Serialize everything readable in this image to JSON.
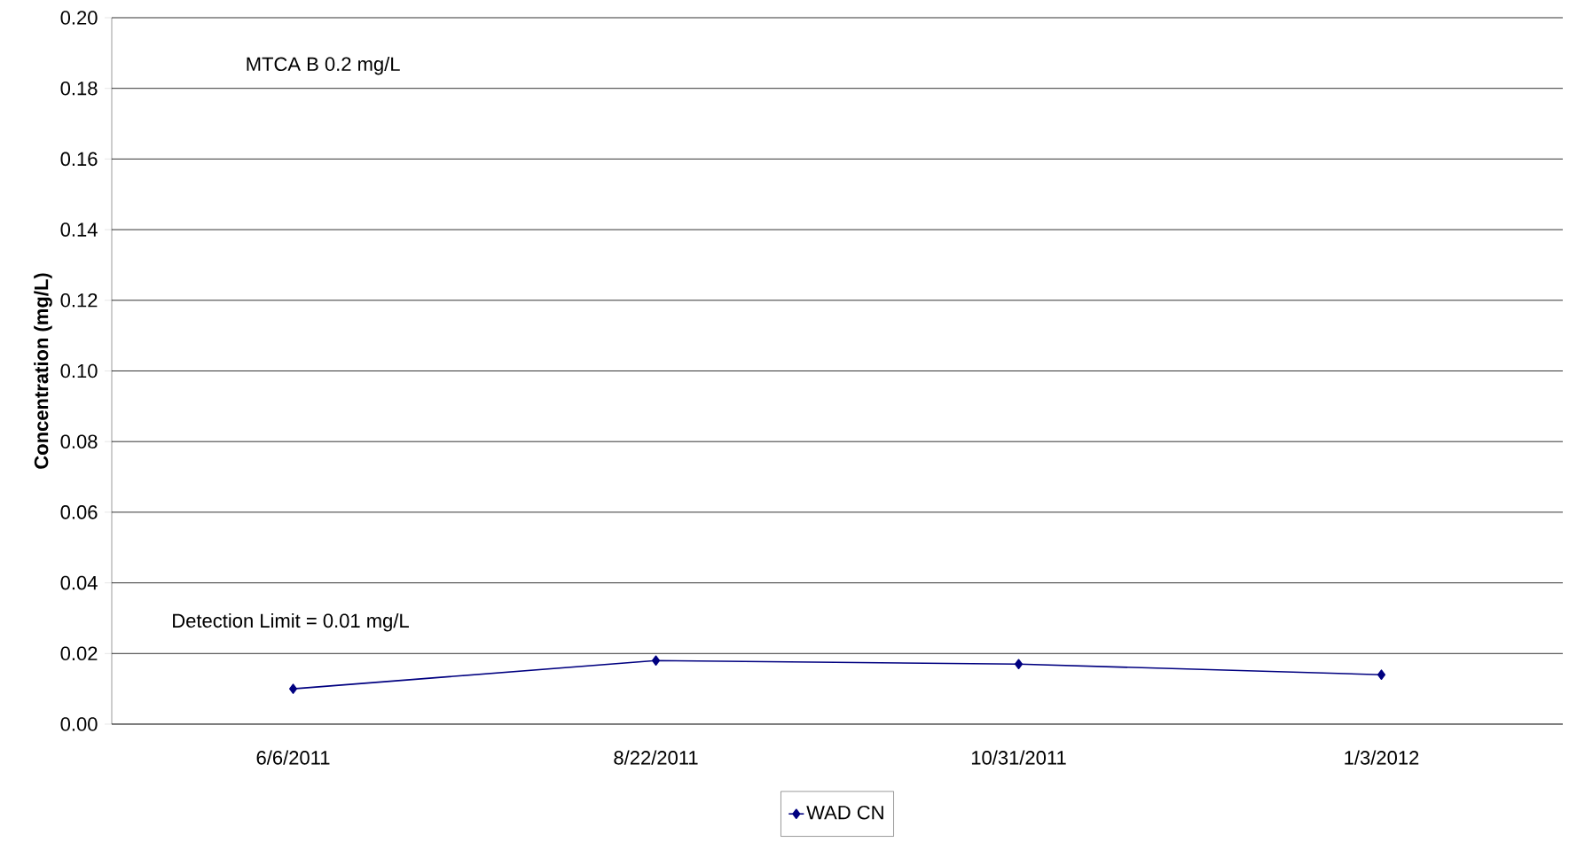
{
  "chart_data": {
    "type": "line",
    "ylabel": "Concentration (mg/L)",
    "categories": [
      "6/6/2011",
      "8/22/2011",
      "10/31/2011",
      "1/3/2012"
    ],
    "series": [
      {
        "name": "WAD CN",
        "color": "#000080",
        "values": [
          0.01,
          0.018,
          0.017,
          0.014
        ]
      }
    ],
    "ylim": [
      0,
      0.2
    ],
    "yticks": [
      {
        "value": 0,
        "label": "0.00"
      },
      {
        "value": 0.02,
        "label": "0.02"
      },
      {
        "value": 0.04,
        "label": "0.04"
      },
      {
        "value": 0.06,
        "label": "0.06"
      },
      {
        "value": 0.08,
        "label": "0.08"
      },
      {
        "value": 0.1,
        "label": "0.10"
      },
      {
        "value": 0.12,
        "label": "0.12"
      },
      {
        "value": 0.14,
        "label": "0.14"
      },
      {
        "value": 0.16,
        "label": "0.16"
      },
      {
        "value": 0.18,
        "label": "0.18"
      },
      {
        "value": 0.2,
        "label": "0.20"
      }
    ],
    "annotations": [
      "MTCA B  0.2 mg/L",
      "Detection Limit  = 0.01 mg/L"
    ],
    "grid": "y",
    "legend": "bottom",
    "marker": "diamond",
    "line_style": "solid"
  }
}
